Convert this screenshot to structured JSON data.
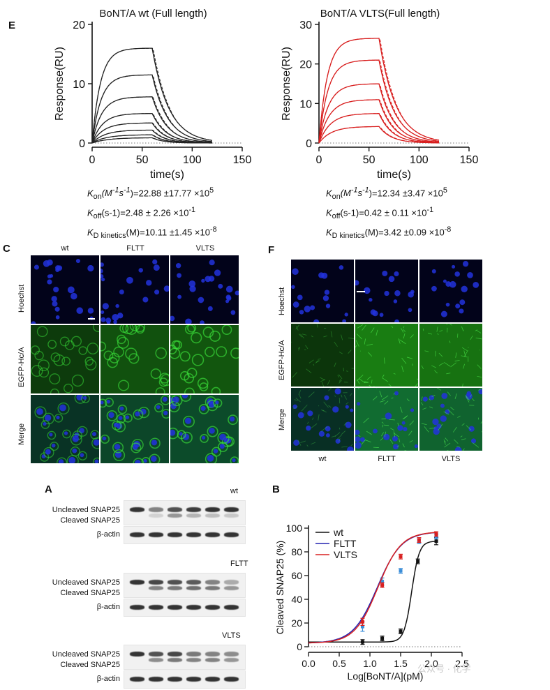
{
  "panel_letters": {
    "E": "E",
    "C": "C",
    "F": "F",
    "A": "A",
    "B": "B"
  },
  "chart_data": [
    {
      "type": "line",
      "id": "spr_wt",
      "title": "BoNT/A wt (Full length)",
      "xlabel": "time(s)",
      "ylabel": "Response(RU)",
      "xlim": [
        0,
        150
      ],
      "ylim": [
        0,
        20
      ],
      "xticks": [
        0,
        50,
        100,
        150
      ],
      "yticks": [
        0,
        10,
        20
      ],
      "color": "#222222",
      "assoc_end": 60,
      "diss_end": 120,
      "series_plateaus": [
        16.0,
        11.5,
        7.8,
        5.0,
        3.4,
        2.2,
        1.4,
        0.9
      ],
      "baseline_dotted": 0
    },
    {
      "type": "line",
      "id": "spr_vlts",
      "title": "BoNT/A VLTS(Full length)",
      "xlabel": "time(s)",
      "ylabel": "Response(RU)",
      "xlim": [
        0,
        150
      ],
      "ylim": [
        0,
        30
      ],
      "xticks": [
        0,
        50,
        100,
        150
      ],
      "yticks": [
        0,
        10,
        20,
        30
      ],
      "color": "#d81e1e",
      "assoc_end": 60,
      "diss_end": 120,
      "series_plateaus": [
        26.5,
        21.0,
        15.0,
        11.0,
        7.5,
        4.2
      ],
      "baseline_dotted": 0
    },
    {
      "type": "scatter",
      "id": "dose_response",
      "xlabel": "Log[BoNT/A](pM)",
      "ylabel": "Cleaved SNAP25 (%)",
      "xlim": [
        0,
        2.5
      ],
      "ylim": [
        0,
        100
      ],
      "xticks": [
        0.0,
        0.5,
        1.0,
        1.5,
        2.0,
        2.5
      ],
      "yticks": [
        0,
        20,
        40,
        60,
        80,
        100
      ],
      "legend_position": "top-left",
      "series": [
        {
          "name": "wt",
          "color": "#111111",
          "x": [
            0.88,
            1.2,
            1.5,
            1.78,
            2.08
          ],
          "y": [
            4,
            7,
            13,
            72,
            89
          ],
          "err": [
            2,
            2,
            2,
            2,
            3
          ],
          "ec50": 1.68,
          "hill": 7
        },
        {
          "name": "FLTT",
          "color": "#2323b0",
          "x": [
            0.88,
            1.2,
            1.5,
            1.8,
            2.08
          ],
          "y": [
            17,
            55,
            64,
            89,
            93
          ],
          "err": [
            4,
            3,
            2,
            2,
            2
          ],
          "ec50": 1.12,
          "hill": 2.2
        },
        {
          "name": "VLTS",
          "color": "#d82020",
          "x": [
            0.88,
            1.2,
            1.5,
            1.8,
            2.08
          ],
          "y": [
            21,
            52,
            76,
            90,
            95
          ],
          "err": [
            3,
            2,
            2,
            2,
            2
          ],
          "ec50": 1.13,
          "hill": 2.3
        }
      ]
    }
  ],
  "kinetics_wt": {
    "kon_label": "K",
    "kon_sub": "on",
    "kon_unit": "(M",
    "kon_exp1": "-1",
    "kon_mid": "s",
    "kon_exp2": "-1",
    "kon_tail": ")=22.88 ±17.77 ×10",
    "kon_pow": "5",
    "koff_label": "K",
    "koff_sub": "off",
    "koff_tail": "(s-1)=2.48 ± 2.26 ×10",
    "koff_pow": "-1",
    "kd_label": "K",
    "kd_sub": "D kinetics",
    "kd_tail": "(M)=10.11 ±1.45 ×10",
    "kd_pow": "-8"
  },
  "kinetics_vlts": {
    "kon_label": "K",
    "kon_sub": "on",
    "kon_unit": "(M",
    "kon_exp1": "-1",
    "kon_mid": "s",
    "kon_exp2": "-1",
    "kon_tail": ")=12.34 ±3.47 ×10",
    "kon_pow": "5",
    "koff_label": "K",
    "koff_sub": "off",
    "koff_tail": "(s-1)=0.42 ± 0.11 ×10",
    "koff_pow": "-1",
    "kd_label": "K",
    "kd_sub": "D kinetics",
    "kd_tail": "(M)=3.42 ±0.09 ×10",
    "kd_pow": "-8"
  },
  "panel_c": {
    "cols": [
      "wt",
      "FLTT",
      "VLTS"
    ],
    "rows": [
      "Hoechst",
      "EGFP-Hc/A",
      "Merge"
    ]
  },
  "panel_f": {
    "cols": [
      "wt",
      "FLTT",
      "VLTS"
    ],
    "rows": [
      "Hoechst",
      "EGFP-Hc/A",
      "Merge"
    ]
  },
  "western": {
    "groups": [
      "wt",
      "FLTT",
      "VLTS"
    ],
    "uncleaved": "Uncleaved SNAP25",
    "cleaved": "Cleaved SNAP25",
    "actin": "β-actin"
  },
  "watermark": "公众号 · 化学"
}
